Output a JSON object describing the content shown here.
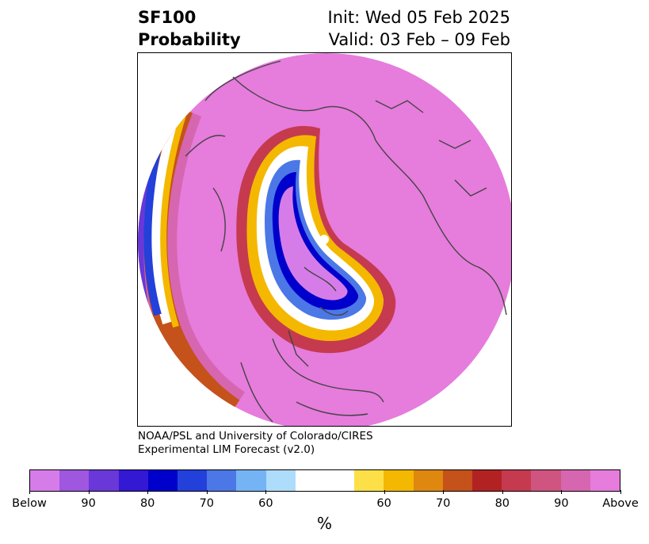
{
  "header": {
    "title_line1": "SF100",
    "title_line2": "Probability",
    "init": "Init: Wed 05 Feb 2025",
    "valid": "Valid: 03 Feb – 09 Feb"
  },
  "credit": {
    "line1": "NOAA/PSL and University of Colorado/CIRES",
    "line2": "Experimental LIM Forecast (v2.0)"
  },
  "colorbar": {
    "colors": [
      "#d67ce9",
      "#9f57e0",
      "#6a37d8",
      "#3318d4",
      "#0000cc",
      "#2340da",
      "#4b78e6",
      "#74b4f4",
      "#aedcfb",
      "#ffffff",
      "#ffffff",
      "#fde047",
      "#f4b800",
      "#df8810",
      "#c4521a",
      "#b22222",
      "#c53a4f",
      "#cf5480",
      "#d766b0",
      "#e67cdc"
    ],
    "tick_labels": [
      "Below",
      "90",
      "80",
      "70",
      "60",
      "60",
      "70",
      "80",
      "90",
      "Above"
    ],
    "unit": "%"
  },
  "map": {
    "ocean_color": "#e67cdc",
    "land_outline_color": "#444444"
  }
}
